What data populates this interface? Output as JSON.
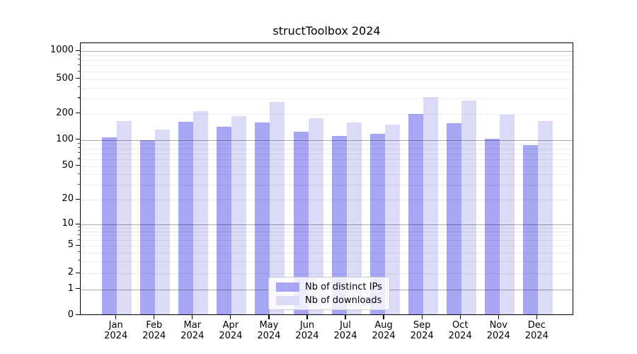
{
  "title": "structToolbox 2024",
  "chart_data": {
    "type": "bar",
    "title": "structToolbox 2024",
    "categories": [
      "Jan",
      "Feb",
      "Mar",
      "Apr",
      "May",
      "Jun",
      "Jul",
      "Aug",
      "Sep",
      "Oct",
      "Nov",
      "Dec"
    ],
    "category_year": "2024",
    "series": [
      {
        "name": "Nb of distinct IPs",
        "color": "#a6a6f4",
        "values": [
          103,
          96,
          158,
          138,
          154,
          120,
          108,
          114,
          194,
          151,
          100,
          84
        ]
      },
      {
        "name": "Nb of downloads",
        "color": "#dbdbf8",
        "values": [
          160,
          127,
          209,
          181,
          264,
          173,
          155,
          147,
          304,
          274,
          190,
          160
        ]
      }
    ],
    "yscale": "log-like-with-zero",
    "y_ticks": [
      0,
      1,
      2,
      5,
      10,
      20,
      50,
      100,
      200,
      500,
      1000
    ],
    "y_minor_gridlines": [
      3,
      4,
      6,
      7,
      8,
      9,
      30,
      40,
      60,
      70,
      80,
      90,
      300,
      400,
      600,
      700,
      800,
      900
    ],
    "ylim": [
      0,
      1400
    ],
    "xlabel": "",
    "ylabel": "",
    "grid": true,
    "legend_position": "lower center inside",
    "colors": {
      "major_gridline": "#adadad",
      "minor_gridline": "#ececec",
      "axis": "#000000",
      "background": "#ffffff"
    }
  }
}
